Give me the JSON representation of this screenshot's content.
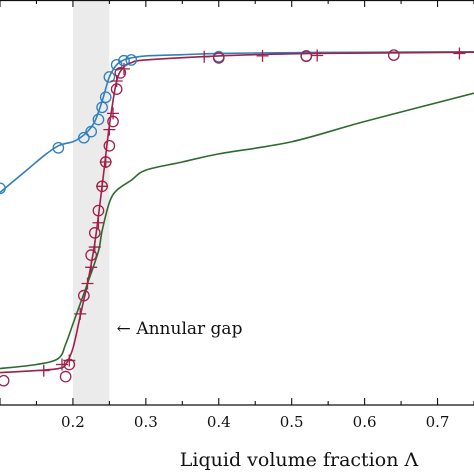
{
  "chart_data": {
    "type": "line",
    "xlabel": "Liquid volume fraction Λ",
    "xlim": [
      0.1,
      0.75
    ],
    "ylim": [
      0,
      1
    ],
    "x_ticks": [
      0.2,
      0.3,
      0.4,
      0.5,
      0.6,
      0.7
    ],
    "x_tick_labels": [
      "0.2",
      "0.3",
      "0.4",
      "0.5",
      "0.6",
      "0.7"
    ],
    "grid": false,
    "shaded_region": {
      "x": [
        0.2,
        0.25
      ],
      "color": "#ebebeb"
    },
    "annotation": {
      "text": "← Annular gap",
      "x": 0.26,
      "y": 0.19
    },
    "series": [
      {
        "kind": "curve",
        "color": "#2f7fbf",
        "points": [
          [
            0.1,
            0.525
          ],
          [
            0.12,
            0.555
          ],
          [
            0.14,
            0.585
          ],
          [
            0.16,
            0.615
          ],
          [
            0.18,
            0.64
          ],
          [
            0.2,
            0.65
          ],
          [
            0.21,
            0.66
          ],
          [
            0.22,
            0.675
          ],
          [
            0.23,
            0.7
          ],
          [
            0.24,
            0.75
          ],
          [
            0.25,
            0.81
          ],
          [
            0.26,
            0.84
          ],
          [
            0.27,
            0.852
          ],
          [
            0.28,
            0.857
          ],
          [
            0.3,
            0.862
          ],
          [
            0.35,
            0.865
          ],
          [
            0.4,
            0.868
          ],
          [
            0.5,
            0.87
          ],
          [
            0.6,
            0.871
          ],
          [
            0.75,
            0.872
          ]
        ]
      },
      {
        "kind": "markers",
        "marker": "circle",
        "color": "#2f7fbf",
        "points": [
          [
            0.1,
            0.535
          ],
          [
            0.18,
            0.635
          ],
          [
            0.215,
            0.66
          ],
          [
            0.225,
            0.675
          ],
          [
            0.235,
            0.705
          ],
          [
            0.24,
            0.735
          ],
          [
            0.245,
            0.76
          ],
          [
            0.25,
            0.81
          ],
          [
            0.26,
            0.84
          ],
          [
            0.27,
            0.85
          ],
          [
            0.28,
            0.852
          ],
          [
            0.4,
            0.86
          ],
          [
            0.52,
            0.862
          ]
        ]
      },
      {
        "kind": "curve",
        "color": "#a02048",
        "points": [
          [
            0.1,
            0.08
          ],
          [
            0.15,
            0.085
          ],
          [
            0.18,
            0.09
          ],
          [
            0.19,
            0.1
          ],
          [
            0.2,
            0.14
          ],
          [
            0.21,
            0.22
          ],
          [
            0.215,
            0.26
          ],
          [
            0.22,
            0.3
          ],
          [
            0.23,
            0.4
          ],
          [
            0.24,
            0.54
          ],
          [
            0.25,
            0.69
          ],
          [
            0.26,
            0.8
          ],
          [
            0.27,
            0.835
          ],
          [
            0.28,
            0.845
          ],
          [
            0.3,
            0.852
          ],
          [
            0.4,
            0.862
          ],
          [
            0.5,
            0.867
          ],
          [
            0.6,
            0.869
          ],
          [
            0.75,
            0.871
          ]
        ]
      },
      {
        "kind": "markers",
        "marker": "plus",
        "color": "#a02048",
        "points": [
          [
            0.16,
            0.085
          ],
          [
            0.185,
            0.1
          ],
          [
            0.195,
            0.11
          ],
          [
            0.21,
            0.225
          ],
          [
            0.22,
            0.3
          ],
          [
            0.225,
            0.34
          ],
          [
            0.23,
            0.39
          ],
          [
            0.235,
            0.45
          ],
          [
            0.24,
            0.54
          ],
          [
            0.245,
            0.6
          ],
          [
            0.25,
            0.68
          ],
          [
            0.255,
            0.72
          ],
          [
            0.26,
            0.8
          ],
          [
            0.27,
            0.83
          ],
          [
            0.38,
            0.86
          ],
          [
            0.46,
            0.862
          ],
          [
            0.535,
            0.863
          ],
          [
            0.73,
            0.868
          ]
        ]
      },
      {
        "kind": "markers",
        "marker": "circle",
        "color": "#a02048",
        "points": [
          [
            0.105,
            0.06
          ],
          [
            0.19,
            0.07
          ],
          [
            0.195,
            0.1
          ],
          [
            0.215,
            0.27
          ],
          [
            0.225,
            0.37
          ],
          [
            0.23,
            0.425
          ],
          [
            0.235,
            0.48
          ],
          [
            0.24,
            0.54
          ],
          [
            0.245,
            0.6
          ],
          [
            0.25,
            0.64
          ],
          [
            0.255,
            0.7
          ],
          [
            0.26,
            0.78
          ],
          [
            0.265,
            0.82
          ],
          [
            0.4,
            0.857
          ],
          [
            0.52,
            0.861
          ],
          [
            0.64,
            0.864
          ]
        ]
      },
      {
        "kind": "curve",
        "color": "#2d6b2d",
        "points": [
          [
            0.1,
            0.09
          ],
          [
            0.15,
            0.1
          ],
          [
            0.18,
            0.115
          ],
          [
            0.19,
            0.15
          ],
          [
            0.2,
            0.2
          ],
          [
            0.21,
            0.25
          ],
          [
            0.22,
            0.3
          ],
          [
            0.235,
            0.38
          ],
          [
            0.24,
            0.43
          ],
          [
            0.25,
            0.5
          ],
          [
            0.26,
            0.53
          ],
          [
            0.28,
            0.555
          ],
          [
            0.3,
            0.58
          ],
          [
            0.35,
            0.6
          ],
          [
            0.4,
            0.62
          ],
          [
            0.5,
            0.65
          ],
          [
            0.6,
            0.7
          ],
          [
            0.75,
            0.77
          ]
        ]
      }
    ]
  }
}
